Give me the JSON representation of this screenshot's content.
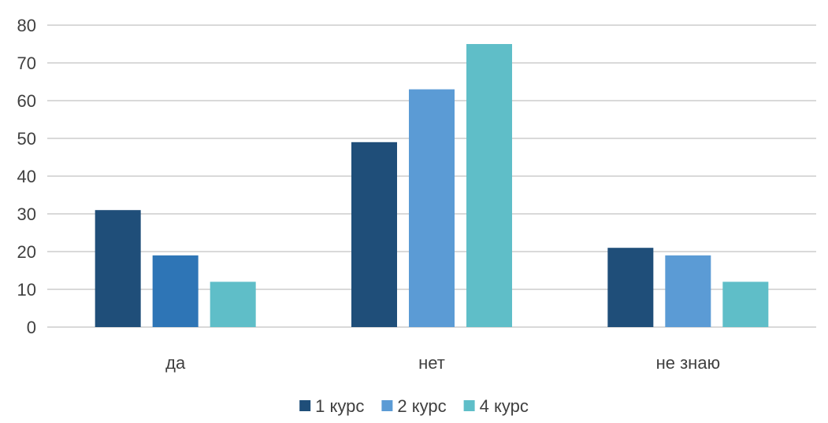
{
  "chart_data": {
    "type": "bar",
    "title": "",
    "xlabel": "",
    "ylabel": "",
    "categories": [
      "да",
      "нет",
      "не знаю"
    ],
    "series": [
      {
        "name": "1 курс",
        "values": [
          31,
          49,
          21
        ],
        "color": "#1f4e79"
      },
      {
        "name": "2 курс",
        "values": [
          19,
          63,
          19
        ],
        "color": "#5b9bd5"
      },
      {
        "name": "4 курс",
        "values": [
          12,
          75,
          12
        ],
        "color": "#5fbec8"
      }
    ],
    "bar_color_overrides": [
      {
        "series": 1,
        "category": 0,
        "color": "#2e75b6"
      }
    ],
    "ylim": [
      0,
      80
    ],
    "yticks": [
      0,
      10,
      20,
      30,
      40,
      50,
      60,
      70,
      80
    ],
    "grid": true,
    "legend": "bottom"
  }
}
